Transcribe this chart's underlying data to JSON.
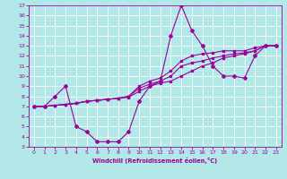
{
  "xlabel": "Windchill (Refroidissement éolien,°C)",
  "background_color": "#b2e8e8",
  "grid_color": "#ffffff",
  "line_color": "#990099",
  "xlim": [
    -0.5,
    23.5
  ],
  "ylim": [
    3,
    17
  ],
  "xticks": [
    0,
    1,
    2,
    3,
    4,
    5,
    6,
    7,
    8,
    9,
    10,
    11,
    12,
    13,
    14,
    15,
    16,
    17,
    18,
    19,
    20,
    21,
    22,
    23
  ],
  "yticks": [
    3,
    4,
    5,
    6,
    7,
    8,
    9,
    10,
    11,
    12,
    13,
    14,
    15,
    16,
    17
  ],
  "series1_x": [
    0,
    1,
    2,
    3,
    4,
    5,
    6,
    7,
    8,
    9,
    10,
    11,
    12,
    13,
    14,
    15,
    16,
    17,
    18,
    19,
    20,
    21,
    22,
    23
  ],
  "series1_y": [
    7,
    7,
    8,
    9,
    5,
    4.5,
    3.5,
    3.5,
    3.5,
    4.5,
    7.5,
    9,
    9.5,
    14,
    17,
    14.5,
    13,
    11,
    10,
    10,
    9.8,
    12,
    13,
    13
  ],
  "series2_x": [
    0,
    1,
    2,
    3,
    4,
    5,
    6,
    7,
    8,
    9,
    10,
    11,
    12,
    13,
    14,
    15,
    16,
    17,
    18,
    19,
    20,
    21,
    22,
    23
  ],
  "series2_y": [
    7,
    7,
    7.1,
    7.2,
    7.3,
    7.5,
    7.6,
    7.7,
    7.8,
    7.9,
    8.5,
    9,
    9.3,
    9.5,
    10,
    10.5,
    11,
    11.3,
    11.8,
    12,
    12.2,
    12.5,
    13,
    13
  ],
  "series3_x": [
    0,
    1,
    2,
    3,
    4,
    5,
    6,
    7,
    8,
    9,
    10,
    11,
    12,
    13,
    14,
    15,
    16,
    17,
    18,
    19,
    20,
    21,
    22,
    23
  ],
  "series3_y": [
    7,
    7,
    7.1,
    7.2,
    7.3,
    7.5,
    7.6,
    7.7,
    7.8,
    8,
    9,
    9.5,
    9.8,
    10.5,
    11.5,
    12,
    12.2,
    12.3,
    12.5,
    12.5,
    12.5,
    12.8,
    13,
    13
  ],
  "series4_x": [
    0,
    1,
    2,
    3,
    4,
    5,
    6,
    7,
    8,
    9,
    10,
    11,
    12,
    13,
    14,
    15,
    16,
    17,
    18,
    19,
    20,
    21,
    22,
    23
  ],
  "series4_y": [
    7,
    7,
    7.1,
    7.2,
    7.3,
    7.5,
    7.6,
    7.7,
    7.8,
    8,
    8.8,
    9.2,
    9.5,
    10,
    11,
    11.3,
    11.5,
    11.8,
    12,
    12.2,
    12.3,
    12.5,
    13,
    13
  ]
}
